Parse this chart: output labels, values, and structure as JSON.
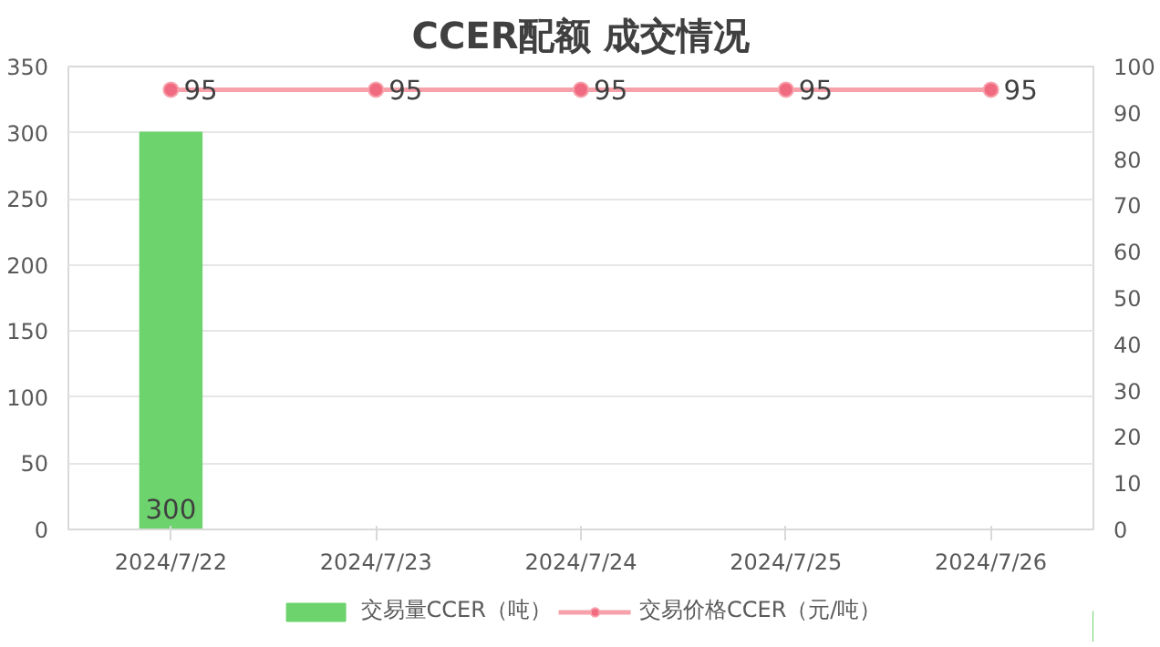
{
  "chart_data": {
    "type": "bar",
    "title": "CCER配额 成交情况",
    "categories": [
      "2024/7/22",
      "2024/7/23",
      "2024/7/24",
      "2024/7/25",
      "2024/7/26"
    ],
    "series": [
      {
        "name": "交易量CCER（吨）",
        "color": "#6dd36d",
        "values": [
          300,
          null,
          null,
          null,
          null
        ],
        "value_labels": [
          "300",
          null,
          null,
          null,
          null
        ]
      },
      {
        "name": "交易价格CCER（元/吨）",
        "type": "line",
        "axis": "y2",
        "color": "#f7a1ab",
        "values": [
          95,
          95,
          95,
          95,
          95
        ],
        "value_labels": [
          "95",
          "95",
          "95",
          "95",
          "95"
        ]
      }
    ],
    "ylim": [
      0,
      350
    ],
    "yticks": [
      0,
      50,
      100,
      150,
      200,
      250,
      300,
      350
    ],
    "y2lim": [
      0,
      100
    ],
    "y2ticks": [
      0,
      10,
      20,
      30,
      40,
      50,
      60,
      70,
      80,
      90,
      100
    ],
    "grid": "y",
    "legend": "bottom",
    "marker": "circle"
  }
}
